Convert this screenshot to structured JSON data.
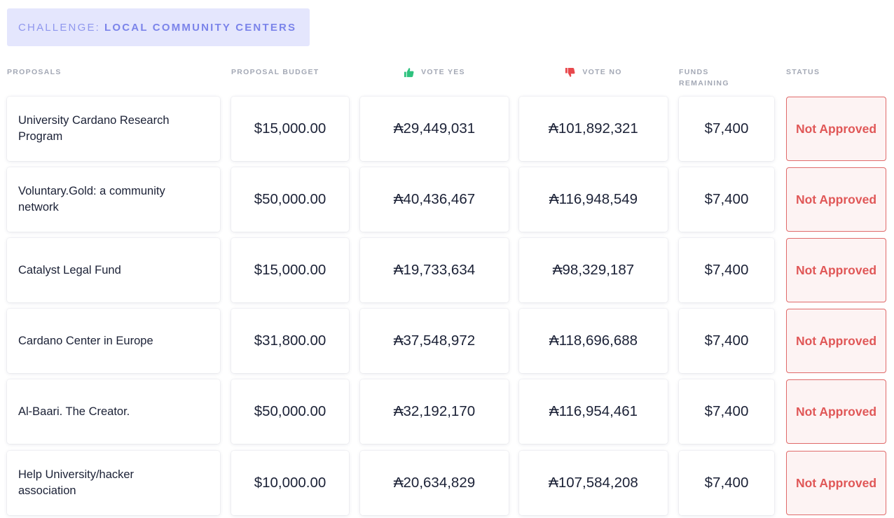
{
  "challenge": {
    "prefix": "CHALLENGE:",
    "name": "LOCAL COMMUNITY CENTERS"
  },
  "headers": {
    "proposals": "PROPOSALS",
    "budget": "PROPOSAL BUDGET",
    "vote_yes": "VOTE YES",
    "vote_no": "VOTE NO",
    "funds_line1": "FUNDS",
    "funds_line2": "REMAINING",
    "status": "STATUS"
  },
  "colors": {
    "thumbs_up": "#2ec27e",
    "thumbs_down": "#e8484d",
    "status_text": "#e05757",
    "status_border": "#e06a6a",
    "badge_bg": "#e4e6fd",
    "badge_text": "#7b84ea"
  },
  "icons": {
    "vote_yes": "thumbs-up-icon",
    "vote_no": "thumbs-down-icon"
  },
  "rows": [
    {
      "name": "University Cardano Research Program",
      "budget": "$15,000.00",
      "yes": "₳29,449,031",
      "no": "₳101,892,321",
      "remaining": "$7,400",
      "status": "Not Approved"
    },
    {
      "name": "Voluntary.Gold: a community network",
      "budget": "$50,000.00",
      "yes": "₳40,436,467",
      "no": "₳116,948,549",
      "remaining": "$7,400",
      "status": "Not Approved"
    },
    {
      "name": "Catalyst Legal Fund",
      "budget": "$15,000.00",
      "yes": "₳19,733,634",
      "no": "₳98,329,187",
      "remaining": "$7,400",
      "status": "Not Approved"
    },
    {
      "name": "Cardano Center in Europe",
      "budget": "$31,800.00",
      "yes": "₳37,548,972",
      "no": "₳118,696,688",
      "remaining": "$7,400",
      "status": "Not Approved"
    },
    {
      "name": "Al-Baari. The Creator.",
      "budget": "$50,000.00",
      "yes": "₳32,192,170",
      "no": "₳116,954,461",
      "remaining": "$7,400",
      "status": "Not Approved"
    },
    {
      "name": "Help University/hacker association",
      "budget": "$10,000.00",
      "yes": "₳20,634,829",
      "no": "₳107,584,208",
      "remaining": "$7,400",
      "status": "Not Approved"
    }
  ]
}
